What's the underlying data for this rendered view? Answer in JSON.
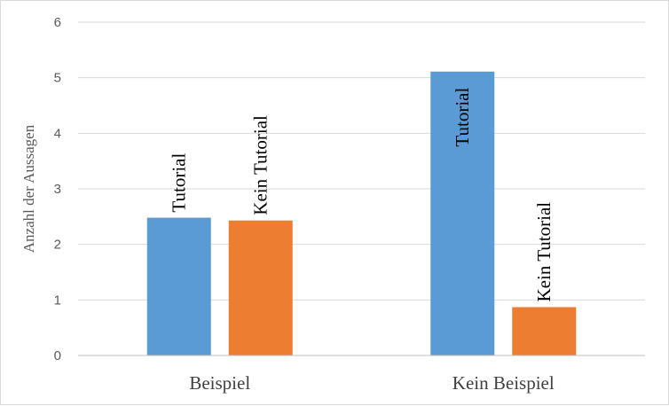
{
  "chart_data": {
    "type": "bar",
    "categories": [
      "Beispiel",
      "Kein Beispiel"
    ],
    "series": [
      {
        "color": "#5B9BD5",
        "values": [
          2.48,
          5.11
        ],
        "labels": [
          "Tutorial",
          "Tutorial"
        ]
      },
      {
        "color": "#ED7D31",
        "values": [
          2.43,
          0.87
        ],
        "labels": [
          "Kein Tutorial",
          "Kein Tutorial"
        ]
      }
    ],
    "ylabel": "Anzahl der Aussagen",
    "ylim": [
      0,
      6
    ],
    "yticks": [
      0,
      1,
      2,
      3,
      4,
      5,
      6
    ],
    "grid": true,
    "legend": "none"
  }
}
